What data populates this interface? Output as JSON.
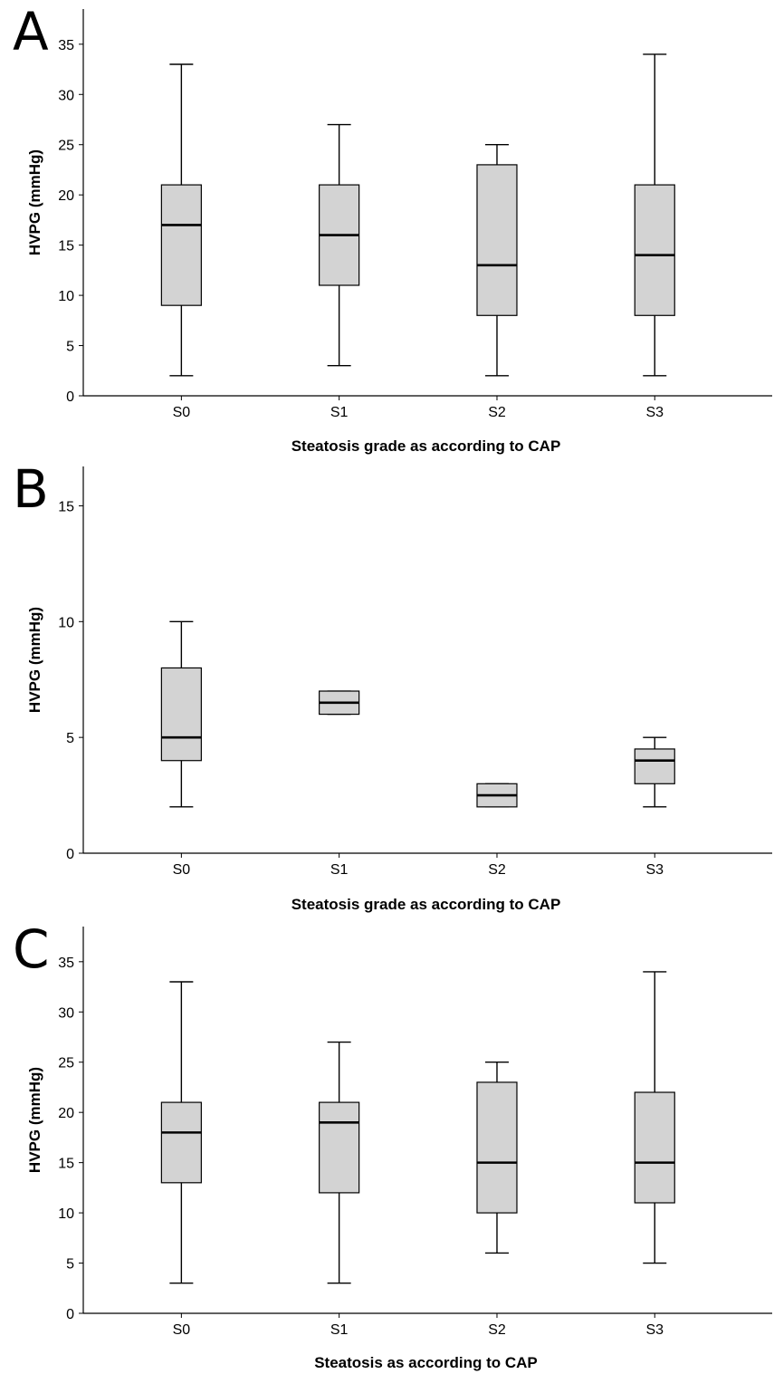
{
  "chart_data": [
    {
      "panel_letter": "A",
      "type": "boxplot",
      "xlabel": "Steatosis grade as according to CAP",
      "ylabel": "HVPG (mmHg)",
      "categories": [
        "S0",
        "S1",
        "S2",
        "S3"
      ],
      "yticks": [
        0,
        5,
        10,
        15,
        20,
        25,
        30,
        35
      ],
      "ylim": [
        0,
        38.5
      ],
      "grid": false,
      "boxes": [
        {
          "category": "S0",
          "min": 2,
          "q1": 9,
          "median": 17,
          "q3": 21,
          "max": 33
        },
        {
          "category": "S1",
          "min": 3,
          "q1": 11,
          "median": 16,
          "q3": 21,
          "max": 27
        },
        {
          "category": "S2",
          "min": 2,
          "q1": 8,
          "median": 13,
          "q3": 23,
          "max": 25
        },
        {
          "category": "S3",
          "min": 2,
          "q1": 8,
          "median": 14,
          "q3": 21,
          "max": 34
        }
      ],
      "colors": {
        "box_fill": "#d3d3d3",
        "line": "#000000"
      }
    },
    {
      "panel_letter": "B",
      "type": "boxplot",
      "xlabel": "Steatosis grade as according to CAP",
      "ylabel": "HVPG (mmHg)",
      "categories": [
        "S0",
        "S1",
        "S2",
        "S3"
      ],
      "yticks": [
        0,
        5,
        10,
        15
      ],
      "ylim": [
        0,
        16.7
      ],
      "grid": false,
      "boxes": [
        {
          "category": "S0",
          "min": 2,
          "q1": 4,
          "median": 5,
          "q3": 8,
          "max": 10
        },
        {
          "category": "S1",
          "min": 6,
          "q1": 6,
          "median": 6.5,
          "q3": 7,
          "max": 7
        },
        {
          "category": "S2",
          "min": 2,
          "q1": 2,
          "median": 2.5,
          "q3": 3,
          "max": 3
        },
        {
          "category": "S3",
          "min": 2,
          "q1": 3,
          "median": 4,
          "q3": 4.5,
          "max": 5
        }
      ],
      "colors": {
        "box_fill": "#d3d3d3",
        "line": "#000000"
      }
    },
    {
      "panel_letter": "C",
      "type": "boxplot",
      "xlabel": "Steatosis as according to CAP",
      "ylabel": "HVPG (mmHg)",
      "categories": [
        "S0",
        "S1",
        "S2",
        "S3"
      ],
      "yticks": [
        0,
        5,
        10,
        15,
        20,
        25,
        30,
        35
      ],
      "ylim": [
        0,
        38.5
      ],
      "grid": false,
      "boxes": [
        {
          "category": "S0",
          "min": 3,
          "q1": 13,
          "median": 18,
          "q3": 21,
          "max": 33
        },
        {
          "category": "S1",
          "min": 3,
          "q1": 12,
          "median": 19,
          "q3": 21,
          "max": 27
        },
        {
          "category": "S2",
          "min": 6,
          "q1": 10,
          "median": 15,
          "q3": 23,
          "max": 25
        },
        {
          "category": "S3",
          "min": 5,
          "q1": 11,
          "median": 15,
          "q3": 22,
          "max": 34
        }
      ],
      "colors": {
        "box_fill": "#d3d3d3",
        "line": "#000000"
      }
    }
  ]
}
